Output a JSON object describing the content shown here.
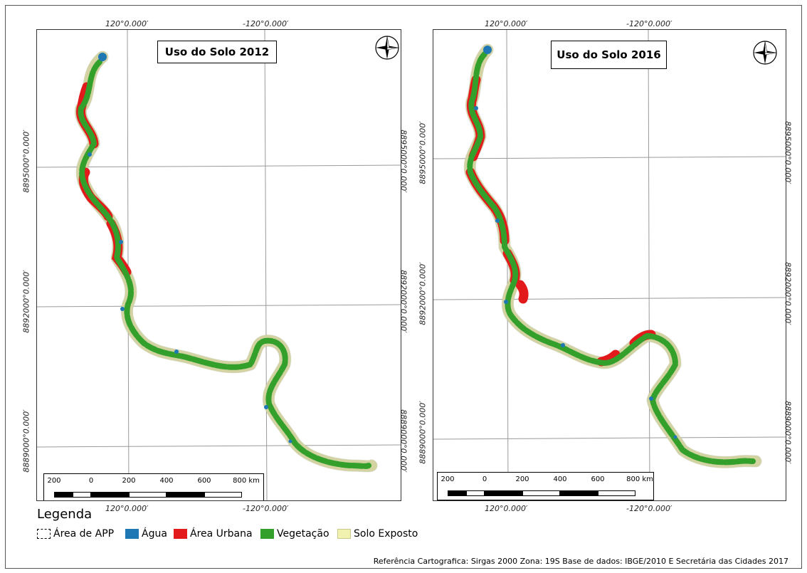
{
  "maps": [
    {
      "title": "Uso do Solo 2012",
      "top_labels": [
        "120°0.000′",
        "-120°0.000′"
      ],
      "bottom_labels": [
        "120°0.000′",
        "-120°0.000′"
      ],
      "left_labels": [
        "8895000°0.000′",
        "8892000°0.000′",
        "8889000°0.000′"
      ],
      "right_labels": [
        "8895000°0.000′",
        "8892000°0.000′",
        "8889000°0.000′"
      ],
      "scale_labels": [
        "200",
        "0",
        "200",
        "400",
        "600",
        "800 km"
      ]
    },
    {
      "title": "Uso do Solo 2016",
      "top_labels": [
        "120°0.000′",
        "-120°0.000′"
      ],
      "bottom_labels": [
        "120°0.000′",
        "-120°0.000′"
      ],
      "left_labels": [
        "8895000°0.000′",
        "8892000°0.000′",
        "8889000°0.000′"
      ],
      "right_labels": [
        "8895000°0.000′",
        "8892000°0.000′",
        "8889000°0.000′"
      ],
      "scale_labels": [
        "200",
        "0",
        "200",
        "400",
        "600",
        "800 km"
      ]
    }
  ],
  "legend": {
    "title": "Legenda",
    "items": [
      {
        "label": "Área de APP",
        "color": "#ffffff",
        "style": "dashed"
      },
      {
        "label": "Água",
        "color": "#1f78b4"
      },
      {
        "label": "Área Urbana",
        "color": "#e31a1c"
      },
      {
        "label": "Vegetação",
        "color": "#33a02c"
      },
      {
        "label": "Solo Exposto",
        "color": "#f2f2b0"
      }
    ]
  },
  "footer": "Referência Cartografica: Sirgas 2000   Zona: 19S  Base de dados: IBGE/2010 E Secretária das Cidades 2017",
  "colors": {
    "water": "#1f78b4",
    "urban": "#e31a1c",
    "vegetation": "#33a02c",
    "bare_soil": "#f2f2b0",
    "grid": "#9a9a9a"
  },
  "icons": [
    "north-arrow-compass-icon"
  ]
}
